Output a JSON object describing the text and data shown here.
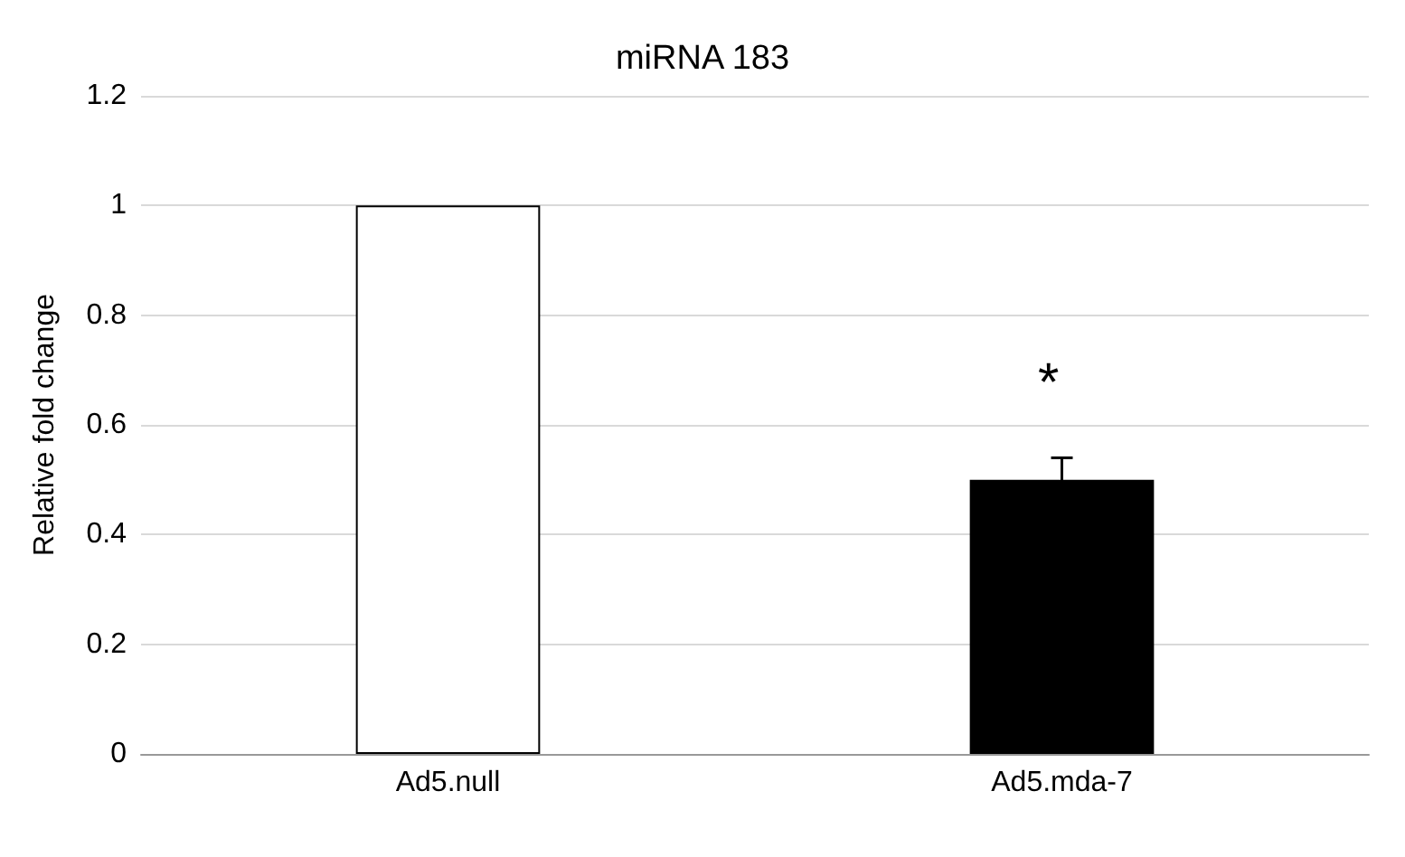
{
  "chart_data": {
    "type": "bar",
    "title": "miRNA 183",
    "ylabel": "Relative fold change",
    "categories": [
      "Ad5.null",
      "Ad5.mda-7"
    ],
    "values": [
      1,
      0.5
    ],
    "colors": [
      "#ffffff",
      "#000000"
    ],
    "errors": [
      null,
      0.04
    ],
    "ylim": [
      0,
      1.2
    ],
    "yticks": [
      0,
      0.2,
      0.4,
      0.6,
      0.8,
      1,
      1.2
    ],
    "grid": "y",
    "annotations": [
      "*"
    ]
  }
}
